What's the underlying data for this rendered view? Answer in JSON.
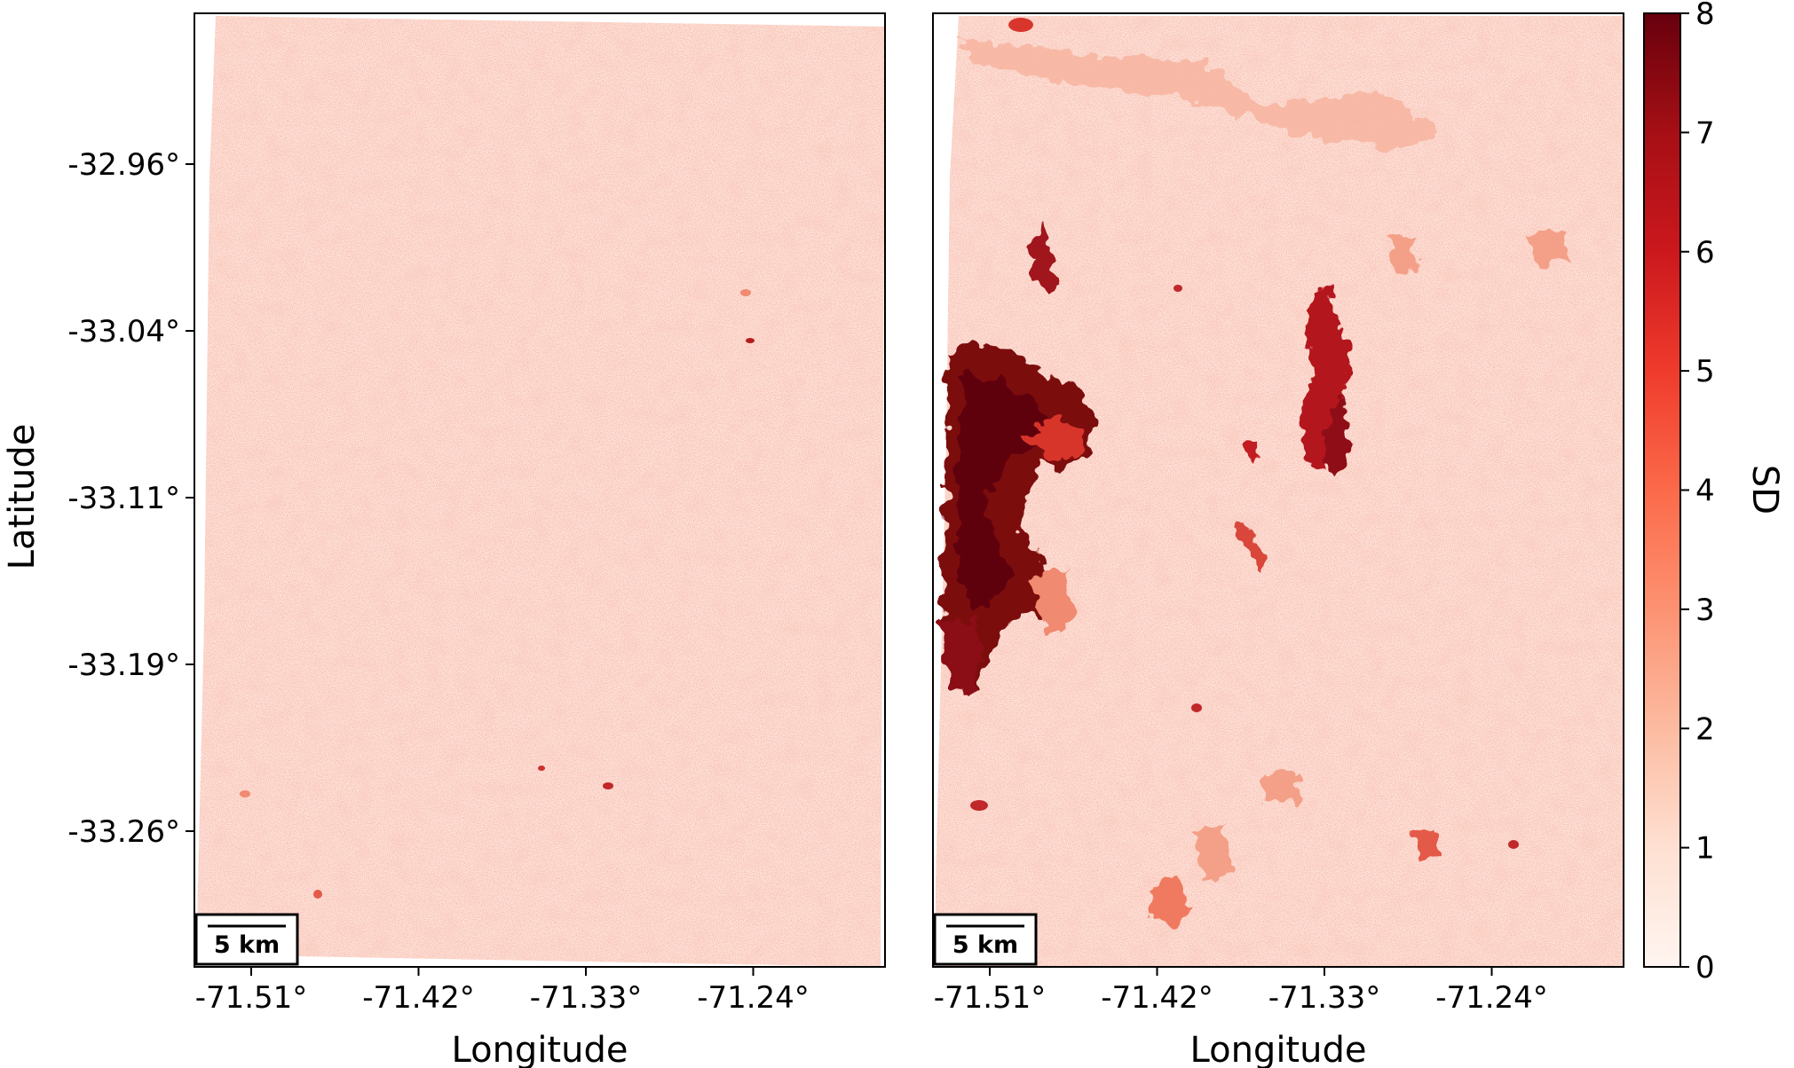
{
  "colors": {
    "colormap": "Reds",
    "cmap_stops": [
      "#fff5f0",
      "#fee0d2",
      "#fcbba1",
      "#fc9272",
      "#fb6a4a",
      "#ef3b2c",
      "#cb181d",
      "#a50f15",
      "#67000d"
    ]
  },
  "figure": {
    "x_axis_label": "Longitude",
    "y_axis_label": "Latitude",
    "colorbar_label": "SD",
    "scale_bar_label": "5 km"
  },
  "chart_data": [
    {
      "type": "heatmap",
      "panel": "left",
      "xlabel": "Longitude",
      "ylabel": "Latitude",
      "x_ticks": [
        "-71.51°",
        "-71.42°",
        "-71.33°",
        "-71.24°"
      ],
      "y_ticks": [
        "-32.96°",
        "-33.04°",
        "-33.11°",
        "-33.19°",
        "-33.26°"
      ],
      "value_range": [
        0,
        8
      ],
      "background_level": 0.8,
      "scale_bar": "5 km"
    },
    {
      "type": "heatmap",
      "panel": "right",
      "xlabel": "Longitude",
      "ylabel": "",
      "x_ticks": [
        "-71.51°",
        "-71.42°",
        "-71.33°",
        "-71.24°"
      ],
      "y_ticks": [],
      "value_range": [
        0,
        8
      ],
      "background_level": 0.8,
      "scale_bar": "5 km"
    }
  ],
  "colorbar": {
    "label": "SD",
    "min": 0,
    "max": 8,
    "ticks": [
      "0",
      "1",
      "2",
      "3",
      "4",
      "5",
      "6",
      "7",
      "8"
    ]
  }
}
